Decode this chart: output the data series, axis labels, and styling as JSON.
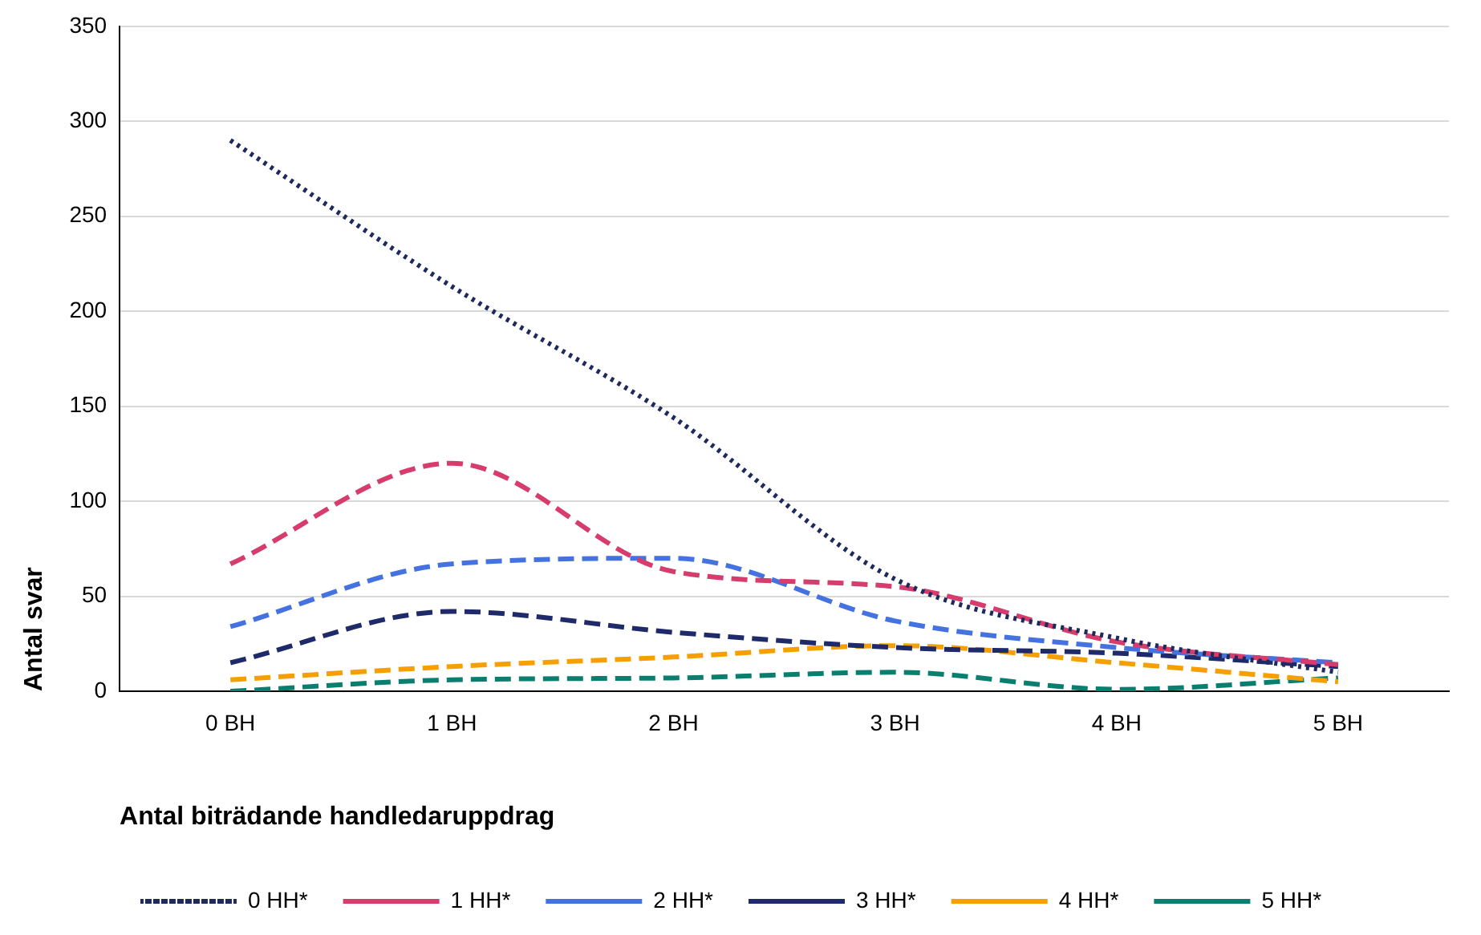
{
  "chart_data": {
    "type": "line",
    "xlabel": "Antal biträdande handledaruppdrag",
    "ylabel": "Antal svar",
    "categories": [
      "0 BH",
      "1 BH",
      "2 BH",
      "3 BH",
      "4 BH",
      "5 BH"
    ],
    "ylim": [
      0,
      350
    ],
    "yticks": [
      0,
      50,
      100,
      150,
      200,
      250,
      300,
      350
    ],
    "grid": "y",
    "legend": "bottom",
    "marker": "none",
    "series": [
      {
        "name": "0 HH*",
        "color": "#1f2a5c",
        "line_style": "dotted",
        "values": [
          290,
          213,
          144,
          59,
          28,
          10
        ]
      },
      {
        "name": "1 HH*",
        "color": "#d63c6c",
        "line_style": "dashed",
        "values": [
          67,
          120,
          63,
          55,
          26,
          14
        ]
      },
      {
        "name": "2 HH*",
        "color": "#4472e0",
        "line_style": "dashed",
        "values": [
          34,
          67,
          70,
          37,
          23,
          15
        ]
      },
      {
        "name": "3 HH*",
        "color": "#1f2a6b",
        "line_style": "dashed",
        "values": [
          15,
          42,
          31,
          23,
          20,
          13
        ]
      },
      {
        "name": "4 HH*",
        "color": "#f5a000",
        "line_style": "dashed",
        "values": [
          6,
          13,
          18,
          24,
          15,
          5
        ]
      },
      {
        "name": "5 HH*",
        "color": "#0a7f6f",
        "line_style": "dashed",
        "values": [
          0,
          6,
          7,
          10,
          1,
          7
        ]
      }
    ]
  }
}
